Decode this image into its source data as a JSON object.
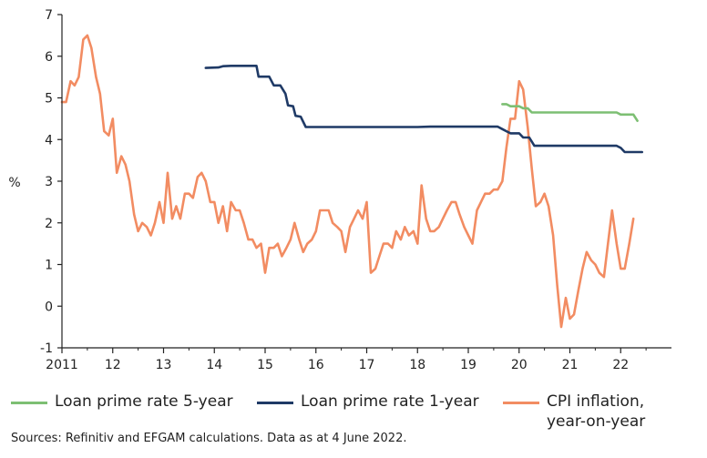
{
  "chart_data": {
    "type": "line",
    "ylabel": "%",
    "ylim": [
      -1,
      7
    ],
    "yticks": [
      "-1",
      "0",
      "1",
      "2",
      "3",
      "4",
      "5",
      "6",
      "7"
    ],
    "xlim": [
      2011.0,
      2023.0
    ],
    "xticks": [
      {
        "value": 2011,
        "label": "2011"
      },
      {
        "value": 2012,
        "label": "12"
      },
      {
        "value": 2013,
        "label": "13"
      },
      {
        "value": 2014,
        "label": "14"
      },
      {
        "value": 2015,
        "label": "15"
      },
      {
        "value": 2016,
        "label": "16"
      },
      {
        "value": 2017,
        "label": "17"
      },
      {
        "value": 2018,
        "label": "18"
      },
      {
        "value": 2019,
        "label": "19"
      },
      {
        "value": 2020,
        "label": "20"
      },
      {
        "value": 2021,
        "label": "21"
      },
      {
        "value": 2022,
        "label": "22"
      }
    ],
    "series": [
      {
        "name": "Loan prime rate 5-year",
        "color": "#7dbf73",
        "points": [
          [
            2019.67,
            4.85
          ],
          [
            2019.75,
            4.85
          ],
          [
            2019.83,
            4.8
          ],
          [
            2019.92,
            4.8
          ],
          [
            2020.0,
            4.8
          ],
          [
            2020.08,
            4.75
          ],
          [
            2020.17,
            4.75
          ],
          [
            2020.25,
            4.65
          ],
          [
            2020.5,
            4.65
          ],
          [
            2021.0,
            4.65
          ],
          [
            2021.5,
            4.65
          ],
          [
            2021.92,
            4.65
          ],
          [
            2022.0,
            4.6
          ],
          [
            2022.25,
            4.6
          ],
          [
            2022.33,
            4.45
          ]
        ]
      },
      {
        "name": "Loan prime rate 1-year",
        "color": "#1f3a66",
        "points": [
          [
            2013.83,
            5.72
          ],
          [
            2014.08,
            5.73
          ],
          [
            2014.17,
            5.76
          ],
          [
            2014.33,
            5.77
          ],
          [
            2014.83,
            5.77
          ],
          [
            2014.87,
            5.51
          ],
          [
            2015.08,
            5.51
          ],
          [
            2015.17,
            5.3
          ],
          [
            2015.3,
            5.3
          ],
          [
            2015.4,
            5.1
          ],
          [
            2015.45,
            4.82
          ],
          [
            2015.55,
            4.8
          ],
          [
            2015.6,
            4.57
          ],
          [
            2015.7,
            4.55
          ],
          [
            2015.8,
            4.3
          ],
          [
            2016.0,
            4.3
          ],
          [
            2017.0,
            4.3
          ],
          [
            2018.0,
            4.3
          ],
          [
            2018.25,
            4.31
          ],
          [
            2019.0,
            4.31
          ],
          [
            2019.58,
            4.31
          ],
          [
            2019.67,
            4.25
          ],
          [
            2019.75,
            4.2
          ],
          [
            2019.83,
            4.15
          ],
          [
            2020.0,
            4.15
          ],
          [
            2020.08,
            4.05
          ],
          [
            2020.2,
            4.05
          ],
          [
            2020.3,
            3.85
          ],
          [
            2021.0,
            3.85
          ],
          [
            2021.92,
            3.85
          ],
          [
            2022.0,
            3.8
          ],
          [
            2022.08,
            3.7
          ],
          [
            2022.42,
            3.7
          ]
        ]
      },
      {
        "name": "CPI inflation,\nyear-on-year",
        "color": "#f28c62",
        "points": [
          [
            2011.0,
            4.9
          ],
          [
            2011.08,
            4.9
          ],
          [
            2011.17,
            5.4
          ],
          [
            2011.25,
            5.3
          ],
          [
            2011.33,
            5.5
          ],
          [
            2011.42,
            6.4
          ],
          [
            2011.5,
            6.5
          ],
          [
            2011.58,
            6.2
          ],
          [
            2011.67,
            5.5
          ],
          [
            2011.75,
            5.1
          ],
          [
            2011.83,
            4.2
          ],
          [
            2011.92,
            4.1
          ],
          [
            2012.0,
            4.5
          ],
          [
            2012.08,
            3.2
          ],
          [
            2012.17,
            3.6
          ],
          [
            2012.25,
            3.4
          ],
          [
            2012.33,
            3.0
          ],
          [
            2012.42,
            2.2
          ],
          [
            2012.5,
            1.8
          ],
          [
            2012.58,
            2.0
          ],
          [
            2012.67,
            1.9
          ],
          [
            2012.75,
            1.7
          ],
          [
            2012.83,
            2.0
          ],
          [
            2012.92,
            2.5
          ],
          [
            2013.0,
            2.0
          ],
          [
            2013.08,
            3.2
          ],
          [
            2013.17,
            2.1
          ],
          [
            2013.25,
            2.4
          ],
          [
            2013.33,
            2.1
          ],
          [
            2013.42,
            2.7
          ],
          [
            2013.5,
            2.7
          ],
          [
            2013.58,
            2.6
          ],
          [
            2013.67,
            3.1
          ],
          [
            2013.75,
            3.2
          ],
          [
            2013.83,
            3.0
          ],
          [
            2013.92,
            2.5
          ],
          [
            2014.0,
            2.5
          ],
          [
            2014.08,
            2.0
          ],
          [
            2014.17,
            2.4
          ],
          [
            2014.25,
            1.8
          ],
          [
            2014.33,
            2.5
          ],
          [
            2014.42,
            2.3
          ],
          [
            2014.5,
            2.3
          ],
          [
            2014.58,
            2.0
          ],
          [
            2014.67,
            1.6
          ],
          [
            2014.75,
            1.6
          ],
          [
            2014.83,
            1.4
          ],
          [
            2014.92,
            1.5
          ],
          [
            2015.0,
            0.8
          ],
          [
            2015.08,
            1.4
          ],
          [
            2015.17,
            1.4
          ],
          [
            2015.25,
            1.5
          ],
          [
            2015.33,
            1.2
          ],
          [
            2015.42,
            1.4
          ],
          [
            2015.5,
            1.6
          ],
          [
            2015.58,
            2.0
          ],
          [
            2015.67,
            1.6
          ],
          [
            2015.75,
            1.3
          ],
          [
            2015.83,
            1.5
          ],
          [
            2015.92,
            1.6
          ],
          [
            2016.0,
            1.8
          ],
          [
            2016.08,
            2.3
          ],
          [
            2016.17,
            2.3
          ],
          [
            2016.25,
            2.3
          ],
          [
            2016.33,
            2.0
          ],
          [
            2016.42,
            1.9
          ],
          [
            2016.5,
            1.8
          ],
          [
            2016.58,
            1.3
          ],
          [
            2016.67,
            1.9
          ],
          [
            2016.75,
            2.1
          ],
          [
            2016.83,
            2.3
          ],
          [
            2016.92,
            2.1
          ],
          [
            2017.0,
            2.5
          ],
          [
            2017.08,
            0.8
          ],
          [
            2017.17,
            0.9
          ],
          [
            2017.25,
            1.2
          ],
          [
            2017.33,
            1.5
          ],
          [
            2017.42,
            1.5
          ],
          [
            2017.5,
            1.4
          ],
          [
            2017.58,
            1.8
          ],
          [
            2017.67,
            1.6
          ],
          [
            2017.75,
            1.9
          ],
          [
            2017.83,
            1.7
          ],
          [
            2017.92,
            1.8
          ],
          [
            2018.0,
            1.5
          ],
          [
            2018.08,
            2.9
          ],
          [
            2018.17,
            2.1
          ],
          [
            2018.25,
            1.8
          ],
          [
            2018.33,
            1.8
          ],
          [
            2018.42,
            1.9
          ],
          [
            2018.5,
            2.1
          ],
          [
            2018.58,
            2.3
          ],
          [
            2018.67,
            2.5
          ],
          [
            2018.75,
            2.5
          ],
          [
            2018.83,
            2.2
          ],
          [
            2018.92,
            1.9
          ],
          [
            2019.0,
            1.7
          ],
          [
            2019.08,
            1.5
          ],
          [
            2019.17,
            2.3
          ],
          [
            2019.25,
            2.5
          ],
          [
            2019.33,
            2.7
          ],
          [
            2019.42,
            2.7
          ],
          [
            2019.5,
            2.8
          ],
          [
            2019.58,
            2.8
          ],
          [
            2019.67,
            3.0
          ],
          [
            2019.75,
            3.8
          ],
          [
            2019.83,
            4.5
          ],
          [
            2019.92,
            4.5
          ],
          [
            2020.0,
            5.4
          ],
          [
            2020.08,
            5.2
          ],
          [
            2020.17,
            4.3
          ],
          [
            2020.25,
            3.3
          ],
          [
            2020.33,
            2.4
          ],
          [
            2020.42,
            2.5
          ],
          [
            2020.5,
            2.7
          ],
          [
            2020.58,
            2.4
          ],
          [
            2020.67,
            1.7
          ],
          [
            2020.75,
            0.5
          ],
          [
            2020.83,
            -0.5
          ],
          [
            2020.92,
            0.2
          ],
          [
            2021.0,
            -0.3
          ],
          [
            2021.08,
            -0.2
          ],
          [
            2021.17,
            0.4
          ],
          [
            2021.25,
            0.9
          ],
          [
            2021.33,
            1.3
          ],
          [
            2021.42,
            1.1
          ],
          [
            2021.5,
            1.0
          ],
          [
            2021.58,
            0.8
          ],
          [
            2021.67,
            0.7
          ],
          [
            2021.75,
            1.5
          ],
          [
            2021.83,
            2.3
          ],
          [
            2021.92,
            1.5
          ],
          [
            2022.0,
            0.9
          ],
          [
            2022.08,
            0.9
          ],
          [
            2022.17,
            1.5
          ],
          [
            2022.25,
            2.1
          ]
        ]
      }
    ],
    "grid": false,
    "legend_position": "bottom"
  },
  "source": "Sources: Refinitiv and EFGAM calculations. Data as at 4 June 2022."
}
